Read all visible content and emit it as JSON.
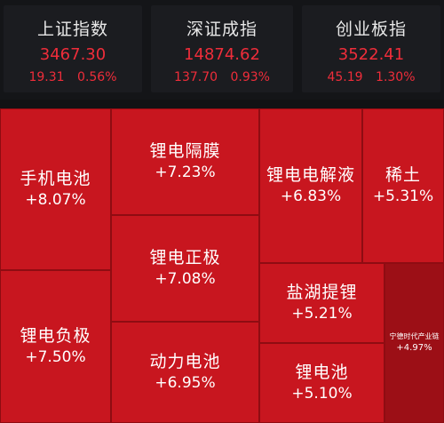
{
  "indices": [
    {
      "name": "上证指数",
      "value": "3467.30",
      "change": "19.31",
      "percent": "0.56%"
    },
    {
      "name": "深证成指",
      "value": "14874.62",
      "change": "137.70",
      "percent": "0.93%"
    },
    {
      "name": "创业板指",
      "value": "3522.41",
      "change": "45.19",
      "percent": "1.30%"
    }
  ],
  "sectors": [
    {
      "name": "手机电池",
      "pct": "+8.07%"
    },
    {
      "name": "锂电负极",
      "pct": "+7.50%"
    },
    {
      "name": "锂电隔膜",
      "pct": "+7.23%"
    },
    {
      "name": "锂电正极",
      "pct": "+7.08%"
    },
    {
      "name": "动力电池",
      "pct": "+6.95%"
    },
    {
      "name": "锂电电解液",
      "pct": "+6.83%"
    },
    {
      "name": "稀土",
      "pct": "+5.31%"
    },
    {
      "name": "盐湖提锂",
      "pct": "+5.21%"
    },
    {
      "name": "锂电池",
      "pct": "+5.10%"
    },
    {
      "name": "宁德时代产业链",
      "pct": "+4.97%"
    }
  ],
  "colors": {
    "up": "#ef2d3a",
    "tile": "#c8161f",
    "tile_dark": "#9c0f16"
  }
}
